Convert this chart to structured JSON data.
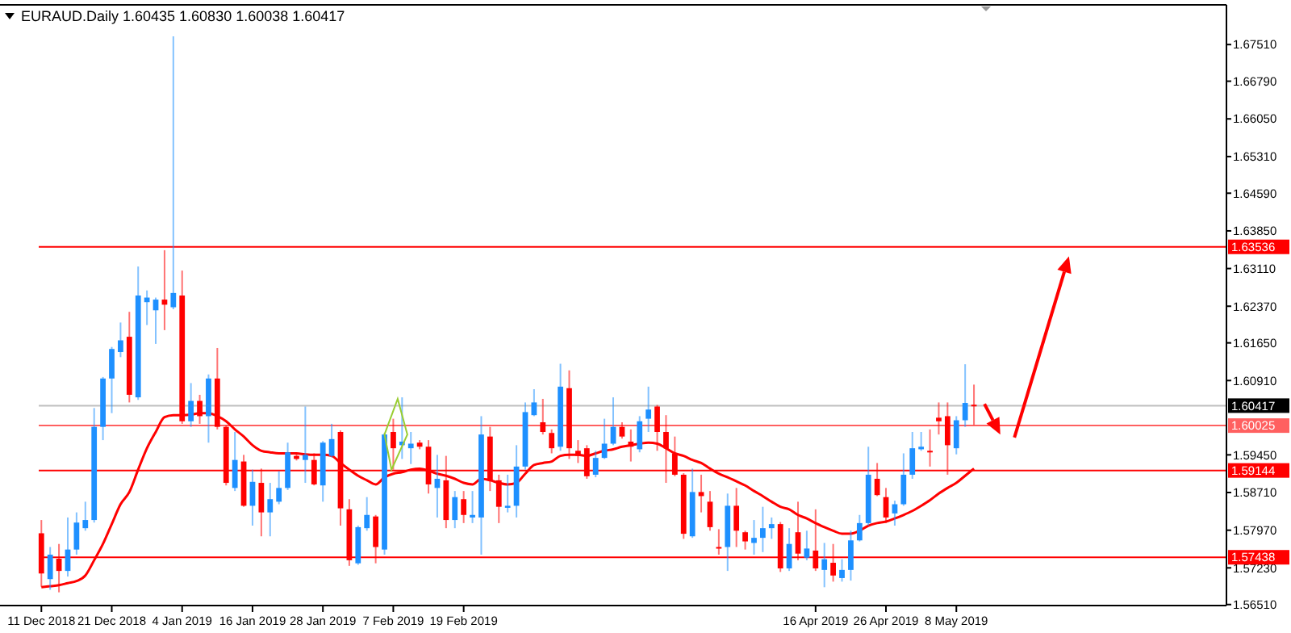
{
  "chart_data": {
    "type": "candlestick",
    "title": "EURAUD.Daily 1.60435 1.60830 1.60038 1.60417",
    "categories": [
      "11 Dec 2018",
      null,
      null,
      null,
      null,
      null,
      null,
      null,
      "21 Dec 2018",
      null,
      null,
      null,
      null,
      null,
      null,
      null,
      "4 Jan 2019",
      null,
      null,
      null,
      null,
      null,
      null,
      null,
      "16 Jan 2019",
      null,
      null,
      null,
      null,
      null,
      null,
      null,
      "28 Jan 2019",
      null,
      null,
      null,
      null,
      null,
      null,
      null,
      "7 Feb 2019",
      null,
      null,
      null,
      null,
      null,
      null,
      null,
      "19 Feb 2019",
      null,
      null,
      null,
      null,
      null,
      null,
      null,
      null,
      null,
      null,
      null,
      null,
      null,
      null,
      null,
      null,
      null,
      null,
      null,
      null,
      null,
      null,
      null,
      null,
      null,
      null,
      null,
      null,
      null,
      null,
      null,
      null,
      null,
      null,
      null,
      null,
      null,
      null,
      null,
      "16 Apr 2019",
      null,
      null,
      null,
      null,
      null,
      null,
      null,
      "26 Apr 2019",
      null,
      null,
      null,
      null,
      null,
      null,
      null,
      "8 May 2019",
      null,
      null,
      null,
      null,
      null,
      null,
      null,
      null,
      null,
      null,
      null,
      null,
      null,
      null,
      null,
      null,
      null,
      null,
      null,
      null,
      null,
      null,
      null,
      null,
      null,
      null,
      null,
      null,
      null,
      null
    ],
    "ohlc": [
      [
        1.5791,
        1.5817,
        1.5686,
        1.5712
      ],
      [
        1.5701,
        1.5764,
        1.568,
        1.5749
      ],
      [
        1.5741,
        1.577,
        1.5675,
        1.5717
      ],
      [
        1.5717,
        1.5822,
        1.5706,
        1.5759
      ],
      [
        1.5759,
        1.5832,
        1.5749,
        1.5812
      ],
      [
        1.5801,
        1.5853,
        1.5796,
        1.5817
      ],
      [
        1.5817,
        1.6037,
        1.5812,
        1.6
      ],
      [
        1.6,
        1.6098,
        1.5974,
        1.6095
      ],
      [
        1.6095,
        1.6157,
        1.6027,
        1.6153
      ],
      [
        1.6147,
        1.6205,
        1.6137,
        1.617
      ],
      [
        1.6177,
        1.6226,
        1.6048,
        1.6063
      ],
      [
        1.6058,
        1.6315,
        1.6053,
        1.6258
      ],
      [
        1.6245,
        1.6268,
        1.62,
        1.6254
      ],
      [
        1.6229,
        1.6254,
        1.6163,
        1.625
      ],
      [
        1.625,
        1.6347,
        1.619,
        1.624
      ],
      [
        1.6235,
        1.6767,
        1.6231,
        1.6263
      ],
      [
        1.6258,
        1.6307,
        1.6006,
        1.6011
      ],
      [
        1.6011,
        1.6086,
        1.6,
        1.6051
      ],
      [
        1.6051,
        1.6063,
        1.6006,
        1.6021
      ],
      [
        1.6021,
        1.6103,
        1.5969,
        1.6095
      ],
      [
        1.6095,
        1.6155,
        1.5995,
        1.6
      ],
      [
        1.6,
        1.6003,
        1.5885,
        1.589
      ],
      [
        1.588,
        1.599,
        1.5874,
        1.5935
      ],
      [
        1.5932,
        1.5945,
        1.5843,
        1.5845
      ],
      [
        1.5845,
        1.5916,
        1.5806,
        1.5892
      ],
      [
        1.589,
        1.5918,
        1.5785,
        1.5832
      ],
      [
        1.5832,
        1.589,
        1.5785,
        1.5858
      ],
      [
        1.5853,
        1.5913,
        1.5848,
        1.588
      ],
      [
        1.588,
        1.5969,
        1.5876,
        1.595
      ],
      [
        1.5943,
        1.5946,
        1.5934,
        1.5937
      ],
      [
        1.5935,
        1.604,
        1.589,
        1.5945
      ],
      [
        1.5935,
        1.5948,
        1.5885,
        1.5887
      ],
      [
        1.5885,
        1.5972,
        1.5853,
        1.5969
      ],
      [
        1.5943,
        1.6006,
        1.594,
        1.5976
      ],
      [
        1.599,
        1.5993,
        1.5806,
        1.584
      ],
      [
        1.5838,
        1.5858,
        1.5727,
        1.5738
      ],
      [
        1.5732,
        1.5806,
        1.5729,
        1.5803
      ],
      [
        1.5801,
        1.5862,
        1.5796,
        1.5827
      ],
      [
        1.5824,
        1.5827,
        1.5732,
        1.5764
      ],
      [
        1.5759,
        1.5988,
        1.5749,
        1.5985
      ],
      [
        1.599,
        1.6016,
        1.5916,
        1.5958
      ],
      [
        1.5964,
        1.6058,
        1.5937,
        1.5971
      ],
      [
        1.5958,
        1.599,
        1.5927,
        1.5967
      ],
      [
        1.5969,
        1.5974,
        1.5956,
        1.5961
      ],
      [
        1.5961,
        1.5974,
        1.5869,
        1.5887
      ],
      [
        1.588,
        1.5945,
        1.5822,
        1.5898
      ],
      [
        1.5895,
        1.5943,
        1.5801,
        1.5817
      ],
      [
        1.5817,
        1.5874,
        1.5801,
        1.5862
      ],
      [
        1.5858,
        1.5874,
        1.5811,
        1.5827
      ],
      [
        1.5822,
        1.5874,
        1.5811,
        1.5827
      ],
      [
        1.5822,
        1.6021,
        1.5749,
        1.5985
      ],
      [
        1.5981,
        1.6,
        1.5874,
        1.5895
      ],
      [
        1.5895,
        1.5906,
        1.5811,
        1.5843
      ],
      [
        1.5841,
        1.5906,
        1.5832,
        1.5845
      ],
      [
        1.5845,
        1.5964,
        1.5822,
        1.5922
      ],
      [
        1.5922,
        1.6048,
        1.5916,
        1.6029
      ],
      [
        1.6023,
        1.6074,
        1.6021,
        1.6048
      ],
      [
        1.6009,
        1.6055,
        1.5985,
        1.599
      ],
      [
        1.5988,
        1.5995,
        1.5948,
        1.5958
      ],
      [
        1.5961,
        1.6124,
        1.5953,
        1.6079
      ],
      [
        1.6076,
        1.6111,
        1.5937,
        1.5958
      ],
      [
        1.5953,
        1.5974,
        1.5929,
        1.5943
      ],
      [
        1.5958,
        1.5964,
        1.5898,
        1.5903
      ],
      [
        1.5906,
        1.5953,
        1.5901,
        1.5939
      ],
      [
        1.5939,
        1.6016,
        1.5937,
        1.5967
      ],
      [
        1.5967,
        1.6058,
        1.5964,
        1.6
      ],
      [
        1.6,
        1.6009,
        1.5977,
        1.5981
      ],
      [
        1.5971,
        1.5995,
        1.5932,
        1.5961
      ],
      [
        1.5956,
        1.6021,
        1.595,
        1.6011
      ],
      [
        1.6016,
        1.6079,
        1.599,
        1.6034
      ],
      [
        1.604,
        1.6043,
        1.5953,
        1.599
      ],
      [
        1.599,
        1.6023,
        1.589,
        1.5958
      ],
      [
        1.5948,
        1.5981,
        1.5903,
        1.5906
      ],
      [
        1.5906,
        1.5909,
        1.578,
        1.579
      ],
      [
        1.5785,
        1.5918,
        1.5782,
        1.5872
      ],
      [
        1.5872,
        1.5906,
        1.5832,
        1.5864
      ],
      [
        1.5853,
        1.5874,
        1.5796,
        1.5803
      ],
      [
        1.5764,
        1.5799,
        1.5749,
        1.5761
      ],
      [
        1.5764,
        1.5869,
        1.5717,
        1.5845
      ],
      [
        1.5845,
        1.588,
        1.5764,
        1.5796
      ],
      [
        1.5793,
        1.5796,
        1.5759,
        1.5775
      ],
      [
        1.5772,
        1.5817,
        1.5749,
        1.5782
      ],
      [
        1.5782,
        1.5843,
        1.5754,
        1.5801
      ],
      [
        1.5801,
        1.5822,
        1.578,
        1.5809
      ],
      [
        1.5809,
        1.5813,
        1.5715,
        1.5722
      ],
      [
        1.5722,
        1.5801,
        1.5717,
        1.577
      ],
      [
        1.5793,
        1.5853,
        1.5738,
        1.5751
      ],
      [
        1.5743,
        1.5796,
        1.5738,
        1.5761
      ],
      [
        1.5757,
        1.5838,
        1.5717,
        1.5722
      ],
      [
        1.5719,
        1.5772,
        1.5685,
        1.574
      ],
      [
        1.5733,
        1.577,
        1.5696,
        1.5708
      ],
      [
        1.5703,
        1.574,
        1.5696,
        1.5719
      ],
      [
        1.5719,
        1.5796,
        1.5698,
        1.5777
      ],
      [
        1.5777,
        1.5827,
        1.5775,
        1.5811
      ],
      [
        1.5811,
        1.5961,
        1.5806,
        1.5906
      ],
      [
        1.5898,
        1.5929,
        1.5864,
        1.5866
      ],
      [
        1.5862,
        1.588,
        1.5811,
        1.5822
      ],
      [
        1.583,
        1.5855,
        1.5806,
        1.5848
      ],
      [
        1.5848,
        1.5948,
        1.5845,
        1.5906
      ],
      [
        1.5906,
        1.599,
        1.5898,
        1.5958
      ],
      [
        1.5956,
        1.599,
        1.5953,
        1.5961
      ],
      [
        1.5953,
        1.5995,
        1.5922,
        1.5952
      ],
      [
        1.6018,
        1.6048,
        1.5985,
        1.6011
      ],
      [
        1.6021,
        1.6048,
        1.5906,
        1.5964
      ],
      [
        1.5958,
        1.6021,
        1.5946,
        1.6013
      ],
      [
        1.6013,
        1.6123,
        1.6,
        1.6047
      ],
      [
        1.60435,
        1.6083,
        1.60038,
        1.60417
      ],
      null,
      null,
      null,
      null,
      null,
      null,
      null,
      null,
      null,
      null,
      null,
      null,
      null,
      null,
      null,
      null,
      null,
      null,
      null,
      null,
      null,
      null,
      null,
      null,
      null,
      null,
      null,
      null
    ],
    "colors": [
      "#ff0000",
      "#1e90ff",
      "#ff0000",
      "#1e90ff",
      "#1e90ff",
      "#1e90ff",
      "#1e90ff",
      "#1e90ff",
      "#1e90ff",
      "#1e90ff",
      "#ff0000",
      "#1e90ff",
      "#1e90ff",
      "#1e90ff",
      "#ff0000",
      "#1e90ff",
      "#ff0000",
      "#1e90ff",
      "#ff0000",
      "#1e90ff",
      "#ff0000",
      "#ff0000",
      "#1e90ff",
      "#ff0000",
      "#1e90ff",
      "#ff0000",
      "#1e90ff",
      "#1e90ff",
      "#1e90ff",
      "#ff0000",
      "#1e90ff",
      "#ff0000",
      "#1e90ff",
      "#1e90ff",
      "#ff0000",
      "#ff0000",
      "#1e90ff",
      "#1e90ff",
      "#ff0000",
      "#1e90ff",
      "#ff0000",
      "#1e90ff",
      "#1e90ff",
      "#ff0000",
      "#ff0000",
      "#1e90ff",
      "#ff0000",
      "#1e90ff",
      "#ff0000",
      "#1e90ff",
      "#1e90ff",
      "#ff0000",
      "#ff0000",
      "#1e90ff",
      "#1e90ff",
      "#1e90ff",
      "#1e90ff",
      "#ff0000",
      "#ff0000",
      "#1e90ff",
      "#ff0000",
      "#ff0000",
      "#ff0000",
      "#1e90ff",
      "#1e90ff",
      "#1e90ff",
      "#ff0000",
      "#ff0000",
      "#1e90ff",
      "#1e90ff",
      "#ff0000",
      "#ff0000",
      "#ff0000",
      "#ff0000",
      "#1e90ff",
      "#ff0000",
      "#ff0000",
      "#ff0000",
      "#1e90ff",
      "#ff0000",
      "#ff0000",
      "#1e90ff",
      "#1e90ff",
      "#1e90ff",
      "#ff0000",
      "#1e90ff",
      "#ff0000",
      "#1e90ff",
      "#ff0000",
      "#1e90ff",
      "#ff0000",
      "#1e90ff",
      "#1e90ff",
      "#1e90ff",
      "#1e90ff",
      "#ff0000",
      "#ff0000",
      "#1e90ff",
      "#1e90ff",
      "#1e90ff",
      "#1e90ff",
      "#ff0000",
      "#ff0000",
      "#ff0000",
      "#1e90ff",
      "#1e90ff",
      "#ff0000",
      null,
      null,
      null,
      null,
      null,
      null,
      null,
      null,
      null,
      null,
      null,
      null,
      null,
      null,
      null,
      null,
      null,
      null,
      null,
      null,
      null,
      null,
      null,
      null,
      null,
      null,
      null,
      null
    ],
    "series": [
      {
        "type": "line",
        "color": "#ff0000",
        "values": [
          1.5685,
          1.5687,
          1.5689,
          1.5693,
          1.5697,
          1.5708,
          1.5738,
          1.577,
          1.5809,
          1.5848,
          1.5872,
          1.5916,
          1.5958,
          1.599,
          1.6019,
          1.6023,
          1.6023,
          1.6024,
          1.6027,
          1.6027,
          1.6021,
          1.6011,
          1.5995,
          1.5981,
          1.5964,
          1.5953,
          1.595,
          1.5948,
          1.5948,
          1.5948,
          1.5946,
          1.5945,
          1.5945,
          1.5943,
          1.5929,
          1.5916,
          1.5904,
          1.5895,
          1.5887,
          1.5901,
          1.5908,
          1.5911,
          1.5916,
          1.5918,
          1.5914,
          1.5908,
          1.5904,
          1.5898,
          1.589,
          1.5887,
          1.5898,
          1.5895,
          1.589,
          1.5887,
          1.589,
          1.5908,
          1.5925,
          1.5929,
          1.5932,
          1.5943,
          1.5945,
          1.5945,
          1.5943,
          1.5948,
          1.5953,
          1.5956,
          1.5961,
          1.5964,
          1.5967,
          1.5969,
          1.5967,
          1.5958,
          1.5948,
          1.5943,
          1.5935,
          1.5929,
          1.5918,
          1.5908,
          1.5901,
          1.5893,
          1.5885,
          1.5874,
          1.5864,
          1.5853,
          1.5843,
          1.5838,
          1.5827,
          1.582,
          1.5811,
          1.5803,
          1.5796,
          1.579,
          1.579,
          1.5796,
          1.5806,
          1.5811,
          1.5814,
          1.582,
          1.5827,
          1.5835,
          1.5845,
          1.5856,
          1.5869,
          1.588,
          1.589,
          1.5904,
          1.5918,
          null,
          null,
          null,
          null,
          null,
          null,
          null,
          null,
          null,
          null,
          null,
          null,
          null,
          null,
          null,
          null,
          null,
          null,
          null,
          null,
          null,
          null,
          null,
          null,
          null,
          null,
          null,
          null
        ]
      }
    ],
    "ylim": [
      1.5649,
      1.6829
    ],
    "yticks": [
      {
        "value": 1.6751,
        "label": "1.67510"
      },
      {
        "value": 1.6679,
        "label": "1.66790"
      },
      {
        "value": 1.6605,
        "label": "1.66050"
      },
      {
        "value": 1.6531,
        "label": "1.65310"
      },
      {
        "value": 1.6459,
        "label": "1.64590"
      },
      {
        "value": 1.6385,
        "label": "1.63850"
      },
      {
        "value": 1.6311,
        "label": "1.63110"
      },
      {
        "value": 1.6237,
        "label": "1.62370"
      },
      {
        "value": 1.6165,
        "label": "1.61650"
      },
      {
        "value": 1.6091,
        "label": "1.60910"
      },
      {
        "value": 1.5945,
        "label": "1.59450"
      },
      {
        "value": 1.5871,
        "label": "1.58710"
      },
      {
        "value": 1.5797,
        "label": "1.57970"
      },
      {
        "value": 1.5723,
        "label": "1.57230"
      },
      {
        "value": 1.5651,
        "label": "1.56510"
      }
    ],
    "ref_lines": [
      {
        "axis": "y",
        "value": 1.63536,
        "label": "1.63536",
        "color": "#ff0000"
      },
      {
        "axis": "y",
        "value": 1.60417,
        "label": "1.60417",
        "color": "#c0c0c0"
      },
      {
        "axis": "y",
        "value": 1.60025,
        "label": "1.60025",
        "color": "#ff6060"
      },
      {
        "axis": "y",
        "value": 1.59144,
        "label": "1.59144",
        "color": "#ff0000"
      },
      {
        "axis": "y",
        "value": 1.57438,
        "label": "1.57438",
        "color": "#ff0000"
      }
    ]
  }
}
